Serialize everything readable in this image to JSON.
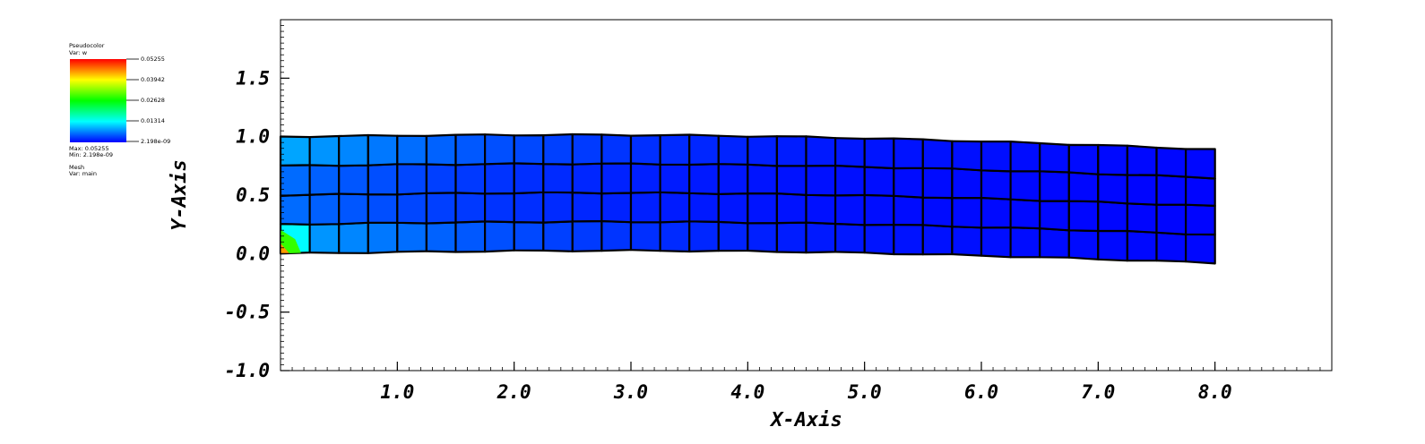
{
  "legend": {
    "plot_type": "Pseudocolor",
    "var_label": "Var: w",
    "ticks": [
      "0.05255",
      "0.03942",
      "0.02628",
      "0.01314",
      "2.198e-09"
    ],
    "max_label": "Max: 0.05255",
    "min_label": "Min: 2.198e-09",
    "mesh_label": "Mesh",
    "mesh_var_label": "Var: main",
    "colors": [
      "#ff0000",
      "#ffff00",
      "#00ff00",
      "#00ffff",
      "#0000ff"
    ]
  },
  "chart_data": {
    "type": "heatmap",
    "xlabel": "X-Axis",
    "ylabel": "Y-Axis",
    "xlim": [
      0,
      9
    ],
    "ylim": [
      -1,
      2
    ],
    "xticks": [
      1.0,
      2.0,
      3.0,
      4.0,
      5.0,
      6.0,
      7.0,
      8.0
    ],
    "xtick_labels": [
      "1.0",
      "2.0",
      "3.0",
      "4.0",
      "5.0",
      "6.0",
      "7.0",
      "8.0"
    ],
    "yticks": [
      -1.0,
      -0.5,
      0.0,
      0.5,
      1.0,
      1.5
    ],
    "ytick_labels": [
      "-1.0",
      "-0.5",
      "0.0",
      "0.5",
      "1.0",
      "1.5"
    ],
    "mesh": {
      "x_divisions": 32,
      "y_divisions": 4,
      "x_range": [
        0,
        8
      ],
      "left_bottom": 0.0,
      "left_top": 1.0,
      "right_bottom": -0.08,
      "right_top": 0.89,
      "variable": "w",
      "value_range": [
        2.198e-09,
        0.05255
      ]
    }
  }
}
